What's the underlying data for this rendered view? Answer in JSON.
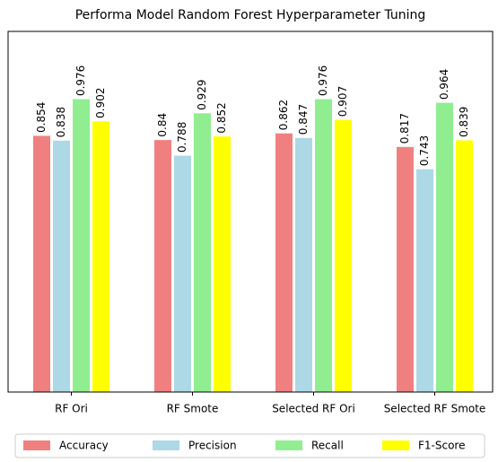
{
  "chart_data": {
    "type": "bar",
    "title": "Performa Model Random Forest Hyperparameter Tuning",
    "categories": [
      "RF Ori",
      "RF Smote",
      "Selected RF Ori",
      "Selected RF Smote"
    ],
    "series": [
      {
        "name": "Accuracy",
        "color": "#f08080",
        "values": [
          0.854,
          0.84,
          0.862,
          0.817
        ]
      },
      {
        "name": "Precision",
        "color": "#add8e6",
        "values": [
          0.838,
          0.788,
          0.847,
          0.743
        ]
      },
      {
        "name": "Recall",
        "color": "#90ee90",
        "values": [
          0.976,
          0.929,
          0.976,
          0.964
        ]
      },
      {
        "name": "F1-Score",
        "color": "#ffff00",
        "values": [
          0.902,
          0.852,
          0.907,
          0.839
        ]
      }
    ],
    "ylim": [
      0,
      1.2
    ],
    "legend": "bottom"
  }
}
